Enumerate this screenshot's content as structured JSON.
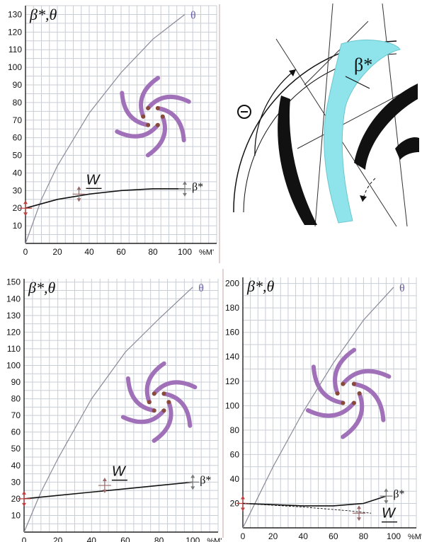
{
  "colors": {
    "theta_line": "#8a8a9a",
    "beta_line": "#111111",
    "blade_purple": "#a070b8",
    "blade_brown": "#8a4a3a",
    "diagram_cyan": "#8fe3ea",
    "grid": "#c9ced6"
  },
  "diagram": {
    "theta_symbol": "Θ",
    "beta_label": "β*"
  },
  "chart_data": [
    {
      "type": "line",
      "panel": "top-left",
      "ylabel": "β*,θ",
      "x_unit_label": "%M'",
      "xlim": [
        0,
        120
      ],
      "ylim": [
        0,
        135
      ],
      "x_ticks": [
        "0",
        "20",
        "40",
        "60",
        "80",
        "100"
      ],
      "y_ticks": [
        "10",
        "20",
        "30",
        "40",
        "50",
        "60",
        "70",
        "80",
        "90",
        "100",
        "110",
        "120",
        "130"
      ],
      "series": [
        {
          "name": "θ",
          "points": [
            [
              0,
              0
            ],
            [
              10,
              25
            ],
            [
              20,
              44
            ],
            [
              40,
              74
            ],
            [
              60,
              97
            ],
            [
              80,
              116
            ],
            [
              100,
              130
            ]
          ]
        },
        {
          "name": "β*",
          "points": [
            [
              0,
              20
            ],
            [
              20,
              25
            ],
            [
              40,
              28
            ],
            [
              60,
              30
            ],
            [
              80,
              31
            ],
            [
              100,
              31
            ]
          ]
        }
      ],
      "annotations": [
        {
          "text": "W",
          "x": 38,
          "y": 32
        }
      ],
      "grid": true
    },
    {
      "type": "line",
      "panel": "bottom-left",
      "ylabel": "β*,θ",
      "x_unit_label": "%M'",
      "xlim": [
        0,
        115
      ],
      "ylim": [
        0,
        152
      ],
      "x_ticks": [
        "0",
        "20",
        "40",
        "60",
        "80",
        "100"
      ],
      "y_ticks": [
        "10",
        "20",
        "30",
        "40",
        "50",
        "60",
        "70",
        "80",
        "90",
        "100",
        "110",
        "120",
        "130",
        "140",
        "150"
      ],
      "series": [
        {
          "name": "θ",
          "points": [
            [
              0,
              0
            ],
            [
              10,
              24
            ],
            [
              20,
              44
            ],
            [
              40,
              80
            ],
            [
              60,
              108
            ],
            [
              80,
              128
            ],
            [
              100,
              147
            ]
          ]
        },
        {
          "name": "β*",
          "points": [
            [
              0,
              20
            ],
            [
              20,
              22
            ],
            [
              40,
              24
            ],
            [
              60,
              26
            ],
            [
              80,
              28
            ],
            [
              100,
              30
            ]
          ]
        }
      ],
      "annotations": [
        {
          "text": "W",
          "x": 52,
          "y": 32
        }
      ],
      "grid": true
    },
    {
      "type": "line",
      "panel": "bottom-right",
      "ylabel": "β*,θ",
      "x_unit_label": "%M'",
      "xlim": [
        0,
        115
      ],
      "ylim": [
        0,
        205
      ],
      "x_ticks": [
        "0",
        "20",
        "40",
        "60",
        "80",
        "100"
      ],
      "y_ticks": [
        "20",
        "40",
        "60",
        "80",
        "100",
        "120",
        "140",
        "160",
        "180",
        "200"
      ],
      "series": [
        {
          "name": "θ",
          "points": [
            [
              0,
              0
            ],
            [
              10,
              25
            ],
            [
              20,
              50
            ],
            [
              40,
              95
            ],
            [
              60,
              135
            ],
            [
              80,
              170
            ],
            [
              100,
              197
            ]
          ]
        },
        {
          "name": "β*",
          "points": [
            [
              0,
              20
            ],
            [
              20,
              19
            ],
            [
              40,
              18
            ],
            [
              60,
              18
            ],
            [
              80,
              20
            ],
            [
              95,
              26
            ]
          ]
        },
        {
          "name": "W",
          "points": [
            [
              0,
              20
            ],
            [
              40,
              17
            ],
            [
              70,
              14
            ],
            [
              85,
              12
            ]
          ]
        }
      ],
      "annotations": [
        {
          "text": "W",
          "x": 92,
          "y": 6
        }
      ],
      "grid": true
    }
  ]
}
